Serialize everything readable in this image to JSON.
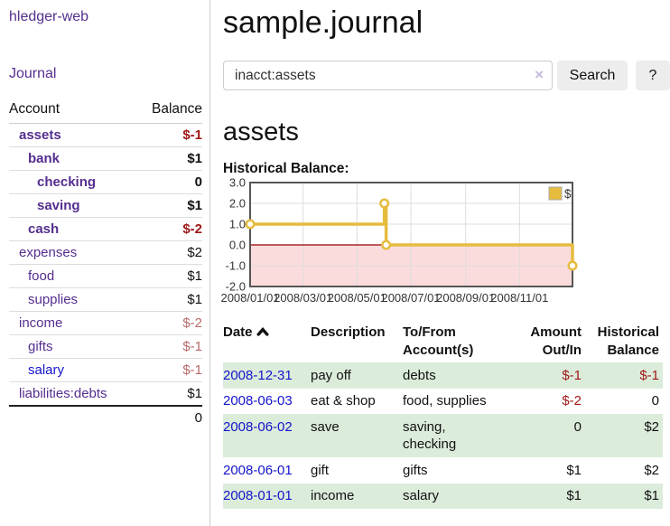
{
  "colors": {
    "link_purple": "#552e8f",
    "link_blue": "#1414cc",
    "neg_dark": "#9e1616",
    "neg_soft": "#b56a6a",
    "plain": "#111111",
    "stripe_green": "#dcecdb",
    "chart_gold": "#e6bc3f",
    "chart_pink": "#fbdcdc",
    "zero_line_red": "#990000",
    "chart_border": "#555555",
    "grid_gray": "#dddddd"
  },
  "sidebar": {
    "brand": "hledger-web",
    "journal_link": "Journal",
    "columns": {
      "account": "Account",
      "balance": "Balance"
    },
    "account_rows": [
      {
        "name": "assets",
        "balance": "$-1",
        "indent": 1,
        "bold": true,
        "name_tone": "purple",
        "balance_tone": "neg_dark"
      },
      {
        "name": "bank",
        "balance": "$1",
        "indent": 2,
        "bold": true,
        "name_tone": "purple",
        "balance_tone": "plain"
      },
      {
        "name": "checking",
        "balance": "0",
        "indent": 3,
        "bold": true,
        "name_tone": "purple",
        "balance_tone": "plain"
      },
      {
        "name": "saving",
        "balance": "$1",
        "indent": 3,
        "bold": true,
        "name_tone": "purple",
        "balance_tone": "plain"
      },
      {
        "name": "cash",
        "balance": "$-2",
        "indent": 2,
        "bold": true,
        "name_tone": "purple",
        "balance_tone": "neg_dark"
      },
      {
        "name": "expenses",
        "balance": "$2",
        "indent": 1,
        "bold": false,
        "name_tone": "purple",
        "balance_tone": "plain"
      },
      {
        "name": "food",
        "balance": "$1",
        "indent": 2,
        "bold": false,
        "name_tone": "purple",
        "balance_tone": "plain"
      },
      {
        "name": "supplies",
        "balance": "$1",
        "indent": 2,
        "bold": false,
        "name_tone": "purple",
        "balance_tone": "plain"
      },
      {
        "name": "income",
        "balance": "$-2",
        "indent": 1,
        "bold": false,
        "name_tone": "purple",
        "balance_tone": "neg_soft"
      },
      {
        "name": "gifts",
        "balance": "$-1",
        "indent": 2,
        "bold": false,
        "name_tone": "purple",
        "balance_tone": "neg_soft"
      },
      {
        "name": "salary",
        "balance": "$-1",
        "indent": 2,
        "bold": false,
        "name_tone": "blue",
        "balance_tone": "neg_soft"
      },
      {
        "name": "liabilities:debts",
        "balance": "$1",
        "indent": 1,
        "bold": false,
        "name_tone": "purple",
        "balance_tone": "plain"
      }
    ],
    "total": "0"
  },
  "main": {
    "page_title": "sample.journal",
    "search": {
      "value": "inacct:assets",
      "clear_icon_glyph": "×",
      "search_button": "Search",
      "help_button": "?"
    },
    "account_heading": "assets",
    "chart_label": "Historical Balance:"
  },
  "chart_data": {
    "type": "line",
    "step": true,
    "title": "Historical Balance:",
    "series": [
      {
        "name": "$",
        "color": "#e6bc3f",
        "x_days": [
          0,
          152,
          154,
          365
        ],
        "x_dates": [
          "2008-01-01",
          "2008-06-01",
          "2008-06-03",
          "2008-12-31"
        ],
        "values": [
          1,
          2,
          0,
          -1
        ]
      }
    ],
    "x_range_days": [
      0,
      365
    ],
    "x_tick_days": [
      0,
      60,
      121,
      182,
      244,
      305
    ],
    "x_tick_labels": [
      "2008/01/01",
      "2008/03/01",
      "2008/05/01",
      "2008/07/01",
      "2008/09/01",
      "2008/11/01"
    ],
    "y_ticks": [
      3.0,
      2.0,
      1.0,
      0.0,
      -1.0,
      -2.0
    ],
    "y_tick_labels": [
      "3.0",
      "2.0",
      "1.0",
      "0.0",
      "-1.0",
      "-2.0"
    ],
    "ylim": [
      -2,
      3
    ],
    "grid": true,
    "negative_region_fill": "#fbdcdc",
    "zero_line_color": "#990000",
    "legend": {
      "position": "top-right",
      "items": [
        {
          "label": "$",
          "swatch": "#e6bc3f"
        }
      ]
    }
  },
  "register": {
    "columns": {
      "date": "Date",
      "description": "Description",
      "accounts": "To/From Account(s)",
      "amount": "Amount Out/In",
      "balance": "Historical Balance"
    },
    "rows": [
      {
        "date": "2008-12-31",
        "description": "pay off",
        "accounts": "debts",
        "amount": "$-1",
        "amount_tone": "neg",
        "balance": "$-1",
        "balance_tone": "neg"
      },
      {
        "date": "2008-06-03",
        "description": "eat & shop",
        "accounts": "food, supplies",
        "amount": "$-2",
        "amount_tone": "neg",
        "balance": "0",
        "balance_tone": "plain"
      },
      {
        "date": "2008-06-02",
        "description": "save",
        "accounts": "saving,\nchecking",
        "amount": "0",
        "amount_tone": "plain",
        "balance": "$2",
        "balance_tone": "plain"
      },
      {
        "date": "2008-06-01",
        "description": "gift",
        "accounts": "gifts",
        "amount": "$1",
        "amount_tone": "plain",
        "balance": "$2",
        "balance_tone": "plain"
      },
      {
        "date": "2008-01-01",
        "description": "income",
        "accounts": "salary",
        "amount": "$1",
        "amount_tone": "plain",
        "balance": "$1",
        "balance_tone": "plain"
      }
    ]
  }
}
